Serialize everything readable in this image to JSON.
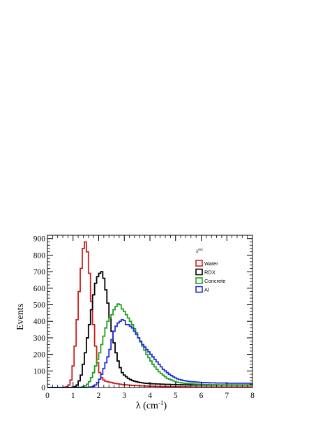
{
  "chart_data": {
    "type": "line",
    "drawstyle": "step-histogram",
    "title": "",
    "xlabel": "λ (cm⁻¹)",
    "xlabel_base": "λ (cm",
    "xlabel_sup": "-1",
    "xlabel_tail": ")",
    "ylabel": "Events",
    "xlim": [
      0,
      8
    ],
    "ylim": [
      0,
      920
    ],
    "x_ticks": [
      0,
      1,
      2,
      3,
      4,
      5,
      6,
      7,
      8
    ],
    "y_ticks": [
      0,
      100,
      200,
      300,
      400,
      500,
      600,
      700,
      800,
      900
    ],
    "grid": false,
    "legend": {
      "title": "λ^{rec}",
      "placement": "top-right"
    },
    "bin_start": 0,
    "bin_width": 0.08,
    "series": [
      {
        "name": "Water",
        "color": "#cc1f1f",
        "values": [
          0,
          0,
          0,
          0,
          0,
          0,
          0,
          0,
          2,
          5,
          15,
          45,
          130,
          250,
          410,
          580,
          720,
          840,
          880,
          820,
          690,
          520,
          380,
          250,
          150,
          90,
          60,
          45,
          38,
          35,
          32,
          30,
          26,
          24,
          22,
          20,
          18,
          17,
          16,
          15,
          14,
          13,
          12,
          12,
          11,
          10,
          10,
          9,
          9,
          8,
          8,
          8,
          7,
          7,
          7,
          6,
          6,
          6,
          6,
          5,
          5,
          5,
          5,
          5,
          4,
          4,
          4,
          4,
          4,
          3,
          3,
          3,
          3,
          3,
          3,
          3,
          3,
          3,
          3,
          3,
          3,
          3,
          3,
          3,
          3,
          3,
          3,
          3,
          3,
          3,
          3,
          3,
          3,
          3,
          3,
          3,
          3,
          3,
          3,
          3
        ]
      },
      {
        "name": "RDX",
        "color": "#000000",
        "values": [
          0,
          0,
          0,
          0,
          0,
          0,
          0,
          0,
          0,
          0,
          0,
          0,
          2,
          5,
          15,
          40,
          75,
          140,
          210,
          300,
          380,
          470,
          560,
          630,
          670,
          690,
          700,
          660,
          590,
          510,
          420,
          340,
          270,
          210,
          160,
          120,
          90,
          75,
          65,
          55,
          48,
          42,
          38,
          35,
          32,
          30,
          28,
          26,
          25,
          24,
          23,
          22,
          22,
          21,
          21,
          20,
          20,
          19,
          19,
          19,
          18,
          18,
          18,
          17,
          17,
          17,
          16,
          16,
          16,
          15,
          15,
          15,
          15,
          15,
          15,
          15,
          15,
          15,
          15,
          15,
          15,
          15,
          15,
          15,
          15,
          15,
          15,
          15,
          15,
          15,
          15,
          15,
          15,
          15,
          15,
          15,
          15,
          15,
          15,
          15
        ]
      },
      {
        "name": "Concrete",
        "color": "#1fa01f",
        "values": [
          0,
          0,
          0,
          0,
          0,
          0,
          0,
          0,
          0,
          0,
          0,
          0,
          0,
          0,
          0,
          0,
          2,
          5,
          10,
          20,
          35,
          60,
          90,
          130,
          170,
          210,
          260,
          310,
          360,
          400,
          420,
          440,
          470,
          490,
          505,
          500,
          475,
          460,
          440,
          420,
          400,
          380,
          355,
          330,
          300,
          275,
          250,
          225,
          200,
          180,
          160,
          140,
          125,
          110,
          95,
          85,
          75,
          65,
          55,
          50,
          45,
          40,
          36,
          32,
          30,
          28,
          26,
          25,
          24,
          23,
          22,
          21,
          20,
          20,
          19,
          19,
          18,
          18,
          18,
          17,
          17,
          17,
          17,
          16,
          16,
          16,
          16,
          16,
          16,
          16,
          16,
          16,
          16,
          16,
          16,
          16,
          16,
          16,
          16,
          16
        ]
      },
      {
        "name": "Al",
        "color": "#1f2fd6",
        "values": [
          0,
          0,
          0,
          0,
          0,
          0,
          0,
          0,
          0,
          0,
          0,
          0,
          0,
          0,
          0,
          0,
          0,
          0,
          0,
          1,
          2,
          4,
          8,
          15,
          30,
          50,
          80,
          115,
          150,
          185,
          230,
          290,
          340,
          370,
          390,
          400,
          410,
          405,
          380,
          380,
          370,
          360,
          340,
          320,
          300,
          280,
          260,
          245,
          230,
          215,
          200,
          185,
          170,
          155,
          140,
          125,
          110,
          100,
          90,
          80,
          72,
          65,
          58,
          52,
          48,
          45,
          42,
          40,
          38,
          36,
          35,
          34,
          33,
          32,
          31,
          30,
          30,
          29,
          29,
          28,
          28,
          28,
          27,
          27,
          27,
          27,
          27,
          26,
          26,
          26,
          26,
          26,
          26,
          26,
          26,
          26,
          26,
          26,
          26,
          26
        ]
      }
    ]
  }
}
